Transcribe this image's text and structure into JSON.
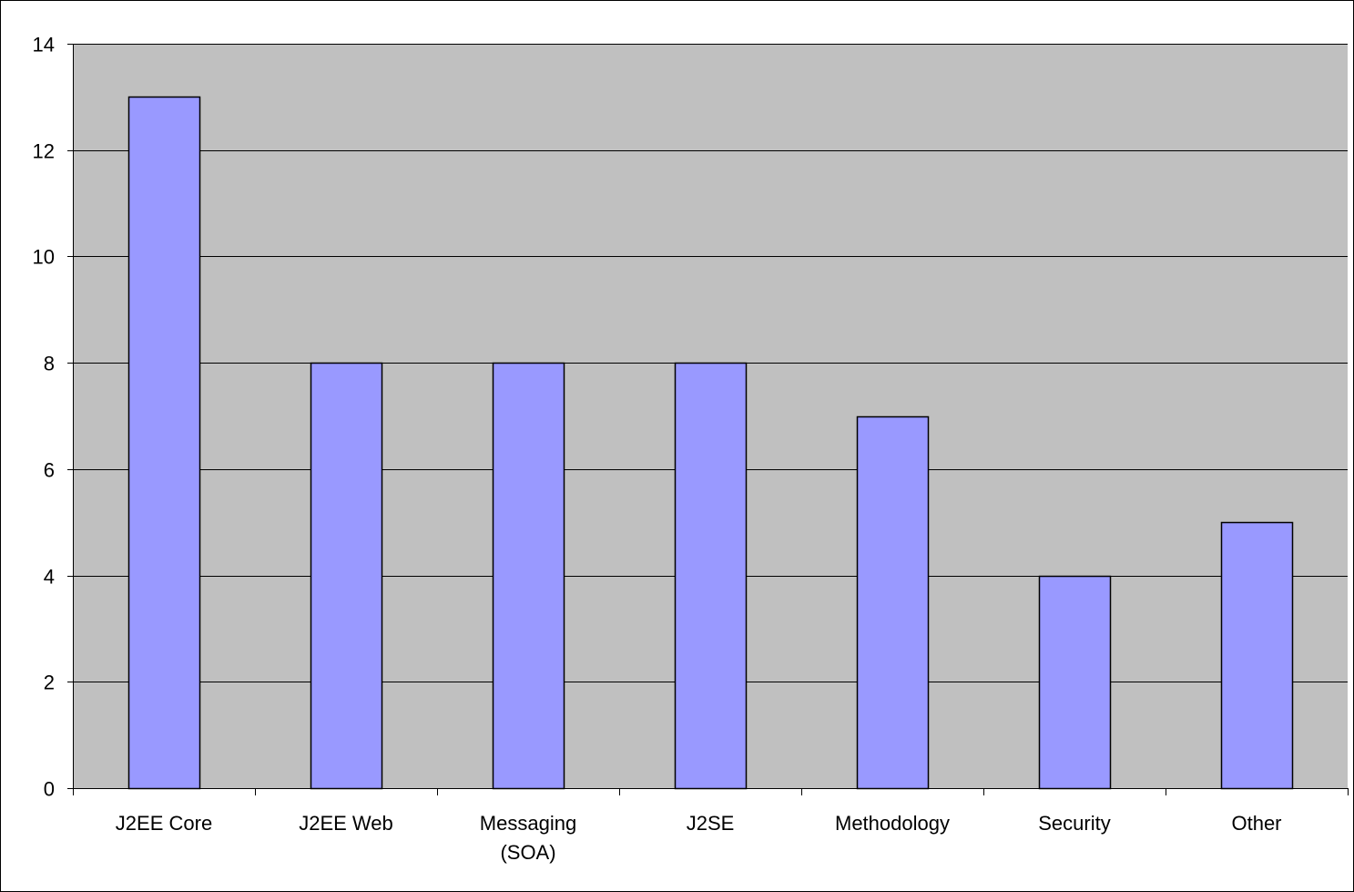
{
  "chart_data": {
    "type": "bar",
    "categories": [
      [
        "J2EE Core"
      ],
      [
        "J2EE Web"
      ],
      [
        "Messaging",
        "(SOA)"
      ],
      [
        "J2SE"
      ],
      [
        "Methodology"
      ],
      [
        "Security"
      ],
      [
        "Other"
      ]
    ],
    "values": [
      13,
      8,
      8,
      8,
      7,
      4,
      5
    ],
    "ylim": [
      0,
      14
    ],
    "yticks": [
      0,
      2,
      4,
      6,
      8,
      10,
      12,
      14
    ],
    "title": "",
    "xlabel": "",
    "ylabel": "",
    "grid": true,
    "legend": "none",
    "colors": {
      "plot_background": "#c0c0c0",
      "bar_fill": "#9999ff",
      "bar_stroke": "#000000",
      "gridline": "#000000"
    }
  }
}
